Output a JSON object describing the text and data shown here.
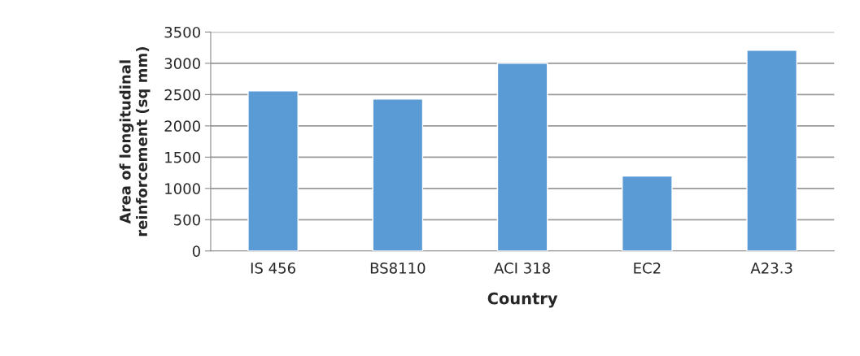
{
  "chart_data": {
    "type": "bar",
    "xlabel": "Country",
    "ylabel": "Area of longitudinal\nreinforcement (sq mm)",
    "categories": [
      "IS 456",
      "BS8110",
      "ACI 318",
      "EC2",
      "A23.3"
    ],
    "values": [
      2560,
      2430,
      3000,
      1200,
      3210
    ],
    "color": "#5b9bd5",
    "ylim": [
      0,
      3500
    ],
    "yticks": [
      0,
      500,
      1000,
      1500,
      2000,
      2500,
      3000,
      3500
    ],
    "grid": "y",
    "legend": false
  }
}
